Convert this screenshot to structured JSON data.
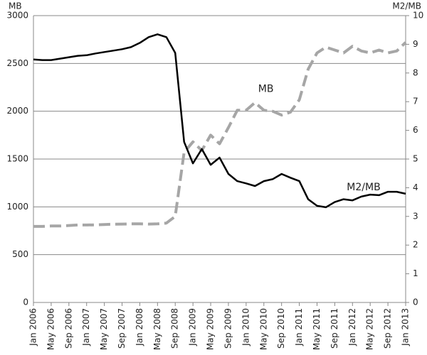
{
  "chart_data": {
    "type": "line",
    "y_label": "MB",
    "y2_label": "M2/MB",
    "categories": [
      "Jan 2006",
      null,
      "May 2006",
      null,
      "Sep 2006",
      null,
      "Jan 2007",
      null,
      "May 2007",
      null,
      "Sep 2007",
      null,
      "Jan 2008",
      null,
      "May 2008",
      null,
      "Sep 2008",
      null,
      "Jan 2009",
      null,
      "May 2009",
      null,
      "Sep 2009",
      null,
      "Jan 2010",
      null,
      "May 2010",
      null,
      "Sep 2010",
      null,
      "Jan 2011",
      null,
      "May 2011",
      null,
      "Sep 2011",
      null,
      "Jan 2012",
      null,
      "May 2012",
      null,
      "Sep 2012",
      null,
      "Jan 2013"
    ],
    "series": [
      {
        "name": "MB",
        "color": "#a6a6a6",
        "dashed": true,
        "axis": "y",
        "values": [
          795,
          795,
          800,
          800,
          805,
          810,
          810,
          812,
          815,
          818,
          820,
          822,
          822,
          820,
          822,
          830,
          900,
          1570,
          1680,
          1590,
          1750,
          1660,
          1830,
          2010,
          2010,
          2090,
          2010,
          2000,
          1960,
          1990,
          2120,
          2440,
          2610,
          2670,
          2640,
          2610,
          2680,
          2630,
          2610,
          2640,
          2610,
          2630,
          2720
        ]
      },
      {
        "name": "M2/MB",
        "color": "#000000",
        "dashed": false,
        "axis": "y2",
        "values": [
          8.47,
          8.45,
          8.45,
          8.5,
          8.55,
          8.6,
          8.62,
          8.68,
          8.73,
          8.78,
          8.83,
          8.9,
          9.05,
          9.25,
          9.35,
          9.25,
          8.7,
          5.6,
          4.85,
          5.35,
          4.8,
          5.05,
          4.48,
          4.23,
          4.15,
          4.06,
          4.23,
          4.3,
          4.48,
          4.35,
          4.23,
          3.6,
          3.37,
          3.32,
          3.5,
          3.6,
          3.56,
          3.69,
          3.76,
          3.74,
          3.86,
          3.86,
          3.79
        ]
      }
    ],
    "ylim": [
      0,
      3000
    ],
    "yticks": [
      0,
      500,
      1000,
      1500,
      2000,
      2500,
      3000
    ],
    "y2lim": [
      0,
      10
    ],
    "y2ticks": [
      0,
      1,
      2,
      3,
      4,
      5,
      6,
      7,
      8,
      9,
      10
    ],
    "grid": true
  }
}
